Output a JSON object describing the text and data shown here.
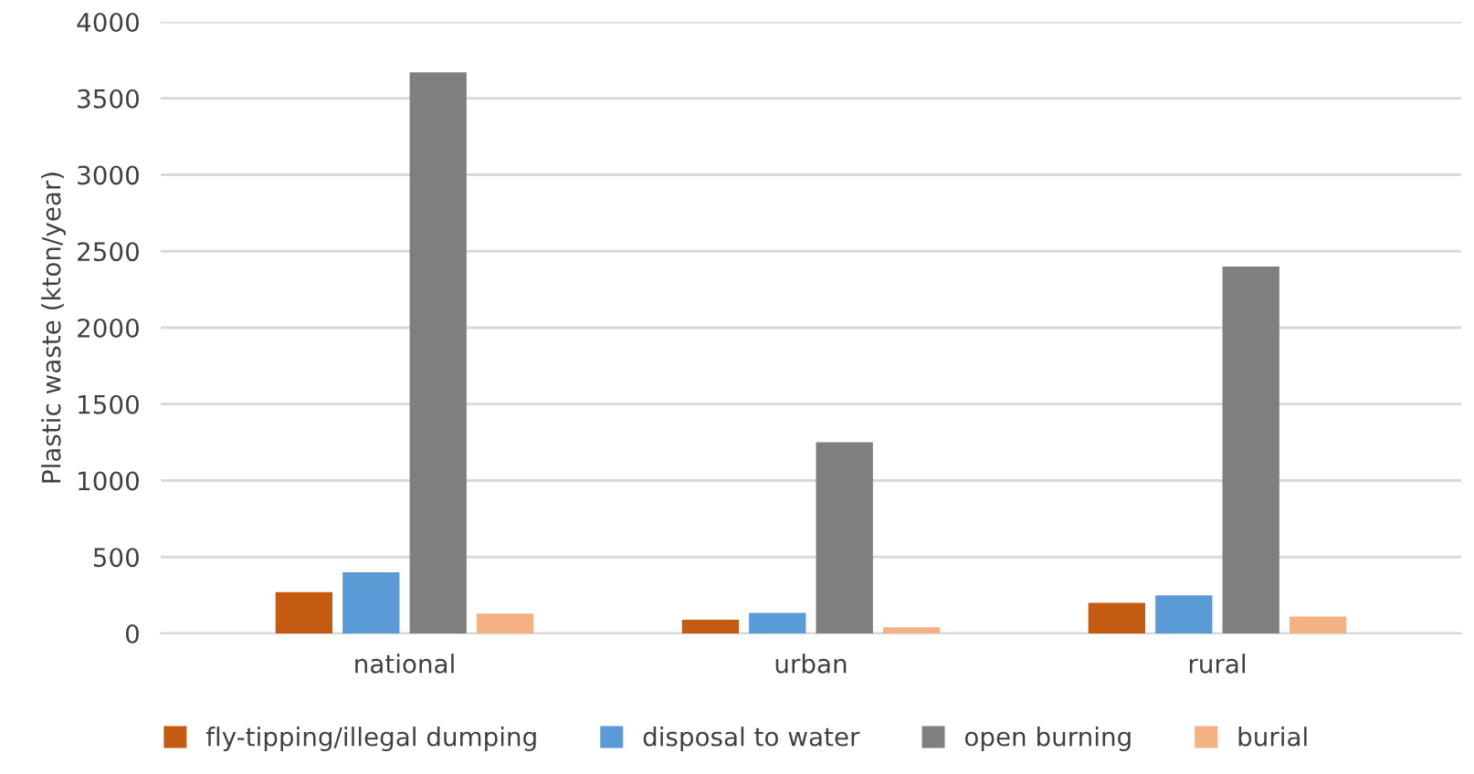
{
  "chart_data": {
    "type": "bar",
    "ylabel": "Plastic waste (kton/year)",
    "categories": [
      "national",
      "urban",
      "rural"
    ],
    "series": [
      {
        "name": "fly-tipping/illegal dumping",
        "color": "#c55a11",
        "values": [
          270,
          90,
          200
        ]
      },
      {
        "name": "disposal to water",
        "color": "#5b9bd5",
        "values": [
          400,
          135,
          250
        ]
      },
      {
        "name": "open burning",
        "color": "#7f7f7f",
        "values": [
          3670,
          1250,
          2400
        ]
      },
      {
        "name": "burial",
        "color": "#f4b183",
        "values": [
          130,
          40,
          110
        ]
      }
    ],
    "ylim": [
      0,
      4000
    ],
    "yticks": [
      0,
      500,
      1000,
      1500,
      2000,
      2500,
      3000,
      3500,
      4000
    ],
    "grid": "y",
    "legend": "bottom"
  }
}
